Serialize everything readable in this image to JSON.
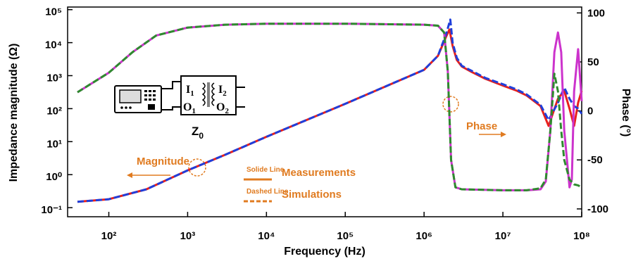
{
  "chart_data": {
    "type": "line",
    "x_label": "Frequency (Hz)",
    "y_label": "Impedance magnitude (Ω)",
    "y2_label": "Phase (°)",
    "xscale": "log",
    "yscale": "log",
    "xlim": [
      30,
      100000000
    ],
    "ylim": [
      0.053,
      120000
    ],
    "y2lim": [
      -108,
      106
    ],
    "xticks": [
      {
        "value": 100,
        "label": "10²"
      },
      {
        "value": 1000,
        "label": "10³"
      },
      {
        "value": 10000,
        "label": "10⁴"
      },
      {
        "value": 100000,
        "label": "10⁵"
      },
      {
        "value": 1000000,
        "label": "10⁶"
      },
      {
        "value": 10000000,
        "label": "10⁷"
      },
      {
        "value": 100000000,
        "label": "10⁸"
      }
    ],
    "yticks": [
      {
        "value": 0.1,
        "label": "10⁻¹"
      },
      {
        "value": 1,
        "label": "10⁰"
      },
      {
        "value": 10,
        "label": "10¹"
      },
      {
        "value": 100,
        "label": "10²"
      },
      {
        "value": 1000,
        "label": "10³"
      },
      {
        "value": 10000,
        "label": "10⁴"
      },
      {
        "value": 100000,
        "label": "10⁵"
      }
    ],
    "y2ticks": [
      -100,
      -50,
      0,
      50,
      100
    ],
    "series": [
      {
        "color": "#e8201c",
        "dash": false,
        "axis": "y",
        "x": [
          40,
          100,
          300,
          1000,
          3000,
          10000,
          100000,
          1000000,
          1500000,
          1900000,
          2100000,
          2300000,
          2600000,
          3000000,
          4000000,
          6000000,
          10000000,
          15000000,
          20000000,
          30000000,
          38000000,
          42000000,
          50000000,
          60000000,
          70000000,
          80000000,
          90000000,
          100000000
        ],
        "values": [
          0.15,
          0.18,
          0.36,
          1.35,
          4,
          14,
          140,
          1500,
          4000,
          15000,
          25000,
          8000,
          3000,
          1900,
          1300,
          800,
          500,
          350,
          250,
          120,
          30,
          60,
          200,
          350,
          100,
          30,
          150,
          350
        ]
      },
      {
        "color": "#1f3fdb",
        "dash": true,
        "axis": "y",
        "x": [
          40,
          100,
          300,
          1000,
          3000,
          10000,
          100000,
          1000000,
          1500000,
          1900000,
          2150000,
          2300000,
          2600000,
          3000000,
          4000000,
          6000000,
          10000000,
          15000000,
          20000000,
          30000000,
          38000000,
          42000000,
          50000000,
          60000000,
          70000000,
          80000000,
          90000000,
          100000000
        ],
        "values": [
          0.15,
          0.18,
          0.36,
          1.35,
          4,
          14,
          140,
          1500,
          4000,
          18000,
          50000,
          10000,
          3500,
          2000,
          1400,
          850,
          550,
          380,
          270,
          130,
          45,
          70,
          150,
          440,
          200,
          120,
          100,
          70
        ]
      },
      {
        "color": "#cc33cc",
        "dash": false,
        "axis": "y2",
        "x": [
          40,
          100,
          200,
          400,
          1000,
          3000,
          10000,
          100000,
          1000000,
          1500000,
          1800000,
          2000000,
          2200000,
          2500000,
          3000000,
          10000000,
          20000000,
          30000000,
          35000000,
          40000000,
          45000000,
          50000000,
          55000000,
          60000000,
          70000000,
          75000000,
          80000000,
          90000000,
          100000000
        ],
        "values": [
          19,
          39,
          60,
          77,
          85,
          88,
          89,
          89,
          88,
          87,
          80,
          40,
          -50,
          -78,
          -80,
          -81,
          -81,
          -80,
          -72,
          -20,
          60,
          80,
          60,
          -20,
          -78,
          -70,
          20,
          63,
          10
        ]
      },
      {
        "color": "#2e8b2e",
        "dash": true,
        "axis": "y2",
        "x": [
          40,
          100,
          200,
          400,
          1000,
          3000,
          10000,
          100000,
          1000000,
          1500000,
          1800000,
          2000000,
          2200000,
          2500000,
          3000000,
          10000000,
          20000000,
          30000000,
          35000000,
          40000000,
          45000000,
          50000000,
          55000000,
          60000000,
          70000000,
          80000000,
          90000000,
          100000000
        ],
        "values": [
          19,
          39,
          60,
          77,
          85,
          88,
          89,
          89,
          88,
          87,
          80,
          40,
          -50,
          -78,
          -80,
          -81,
          -81,
          -79,
          -70,
          -20,
          38,
          20,
          -20,
          -50,
          -70,
          -75,
          -76,
          -78
        ]
      }
    ],
    "annotations": {
      "magnitude": "Magnitude",
      "phase": "Phase",
      "solid_sample": "Solide Line",
      "measurements": "Measurements",
      "dashed_sample": "Dashed Line",
      "simulations": "Simulations",
      "impedance": {
        "main": "Z",
        "sub": "0"
      },
      "i1": {
        "main": "I",
        "sub": "1"
      },
      "i2": {
        "main": "I",
        "sub": "2"
      },
      "o1": {
        "main": "O",
        "sub": "1"
      },
      "o2": {
        "main": "O",
        "sub": "2"
      }
    }
  }
}
